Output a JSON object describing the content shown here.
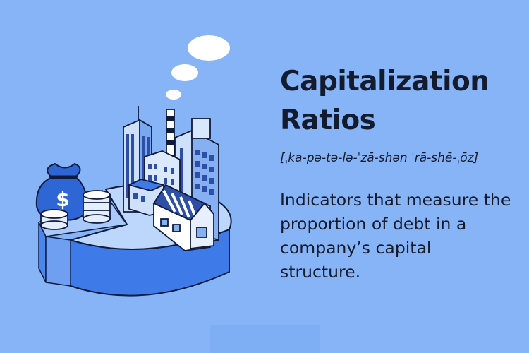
{
  "title_lines": [
    "Capitalization",
    "Ratios"
  ],
  "pronunciation": "[ˌka-pə-tə-lə-ˈzā-shən ˈrā-shē-ˌōz]",
  "definition": "Indicators that measure the proportion of debt in a company’s capital structure.",
  "illustration": {
    "money_bag_symbol": "$",
    "icons": [
      "pie-chart-icon",
      "money-bag-icon",
      "coin-stack-icon",
      "factory-icon",
      "office-buildings-icon",
      "thought-cloud-icon"
    ]
  },
  "colors": {
    "background": "#86b4f7",
    "text": "#141b2e",
    "pie_top": "#bdd6fb",
    "pie_side": "#4b86ec",
    "outline": "#0f1b3d",
    "bag": "#2f66d6"
  }
}
